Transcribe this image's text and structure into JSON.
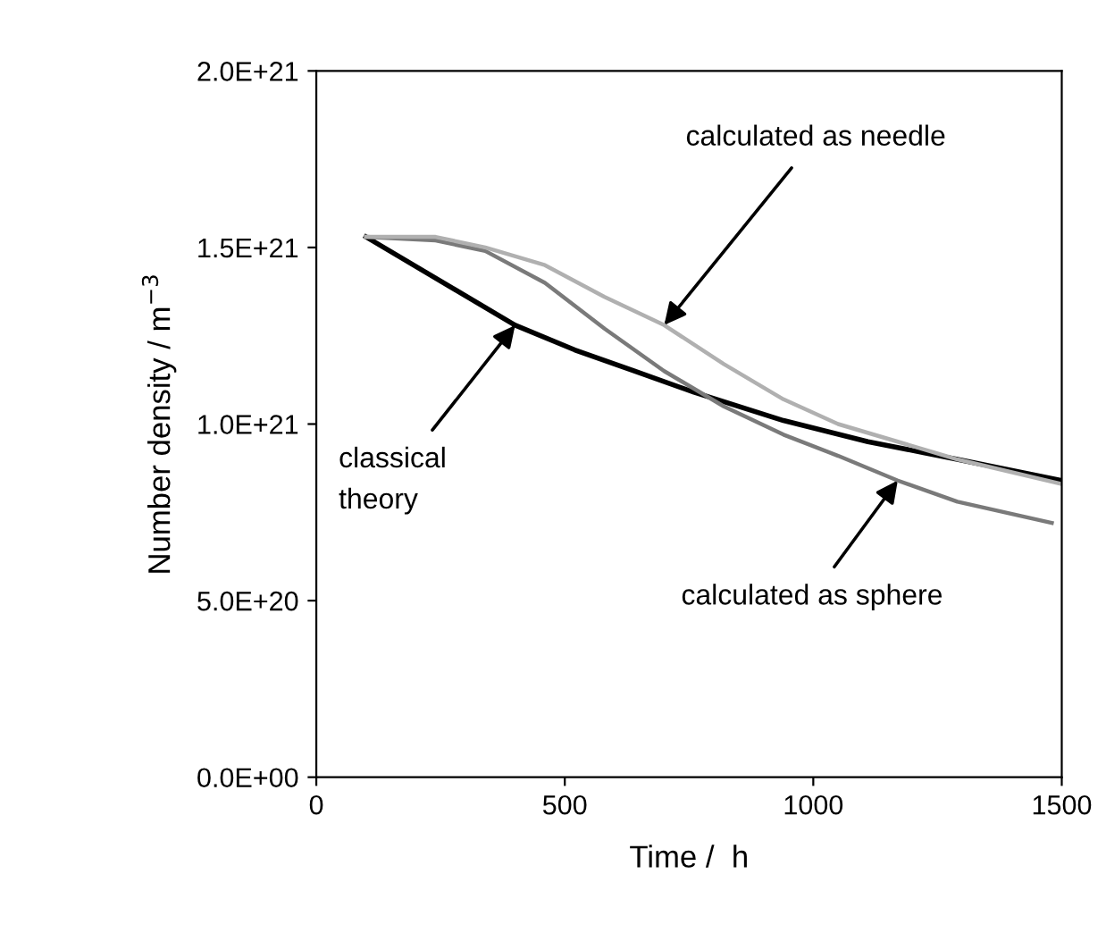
{
  "chart_data": {
    "type": "line",
    "xlabel": "Time /  h",
    "ylabel": "Number density / m$^{−3}$",
    "xlim": [
      0,
      1500
    ],
    "xticks": [
      0,
      500,
      1000,
      1500
    ],
    "ylim": [
      0,
      2e+21
    ],
    "yticks": [
      {
        "value": 0,
        "label": "0.0E+00"
      },
      {
        "value": 5e+20,
        "label": "5.0E+20"
      },
      {
        "value": 1e+21,
        "label": "1.0E+21"
      },
      {
        "value": 1.5e+21,
        "label": "1.5E+21"
      },
      {
        "value": 2e+21,
        "label": "2.0E+21"
      }
    ],
    "grid": false,
    "marker": "none",
    "line_style": "solid",
    "series": [
      {
        "color": "#000000",
        "x": [
          100,
          220,
          400,
          520,
          640,
          760,
          940,
          1110,
          1290,
          1500
        ],
        "values": [
          1.53e+21,
          1.43e+21,
          1.28e+21,
          1.21e+21,
          1.15e+21,
          1.09e+21,
          1.01e+21,
          9.5e+20,
          9e+20,
          8.4e+20
        ]
      },
      {
        "color": "#7a7a7a",
        "x": [
          100,
          240,
          340,
          460,
          580,
          700,
          820,
          940,
          1050,
          1170,
          1290,
          1480
        ],
        "values": [
          1.53e+21,
          1.52e+21,
          1.49e+21,
          1.4e+21,
          1.27e+21,
          1.15e+21,
          1.05e+21,
          9.7e+20,
          9.1e+20,
          8.4e+20,
          7.8e+20,
          7.2e+20
        ]
      },
      {
        "color": "#b0b0b0",
        "x": [
          100,
          240,
          340,
          460,
          580,
          700,
          820,
          940,
          1050,
          1170,
          1290,
          1500
        ],
        "values": [
          1.53e+21,
          1.53e+21,
          1.5e+21,
          1.45e+21,
          1.36e+21,
          1.28e+21,
          1.17e+21,
          1.07e+21,
          1e+21,
          9.5e+20,
          9e+20,
          8.3e+20
        ]
      }
    ],
    "annotations": [
      {
        "text": "calculated as needle",
        "x": 700,
        "y": 1.28e+21
      },
      {
        "text": "classical\ntheory",
        "x": 400,
        "y": 1.28e+21
      },
      {
        "text": "calculated as sphere",
        "x": 1170,
        "y": 8.4e+20
      }
    ]
  }
}
